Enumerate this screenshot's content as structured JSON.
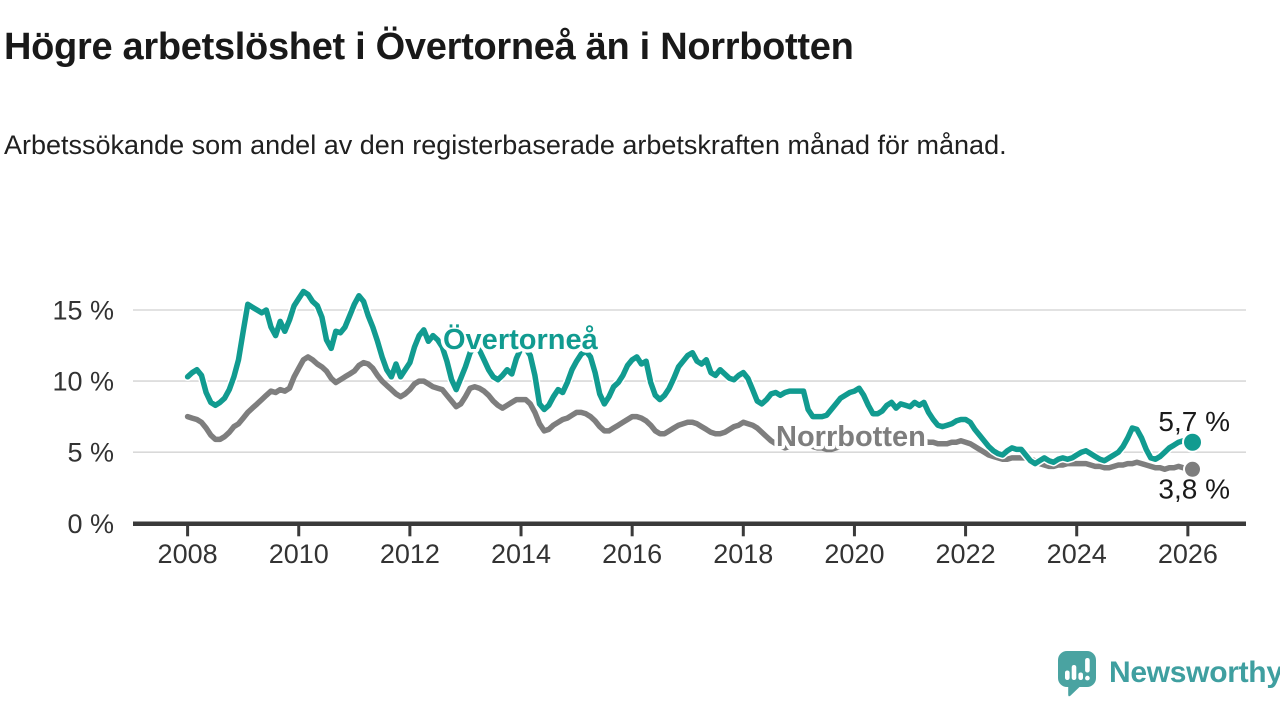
{
  "header": {
    "title": "Högre arbetslöshet i Övertorneå än i Norrbotten",
    "subtitle": "Arbetssökande som andel av den registerbaserade arbetskraften månad för månad."
  },
  "chart_data": {
    "type": "line",
    "title": "Högre arbetslöshet i Övertorneå än i Norrbotten",
    "subtitle": "Arbetssökande som andel av den registerbaserade arbetskraften månad för månad.",
    "unit": "%",
    "grid": "horizontal",
    "legend_position": "inline-labels",
    "x_start_year": 2008,
    "x_interval": "monthly",
    "x_end": "2026-02",
    "ylim": [
      0,
      17
    ],
    "x_ticks": [
      2008,
      2010,
      2012,
      2014,
      2016,
      2018,
      2020,
      2022,
      2024,
      2026
    ],
    "y_ticks": [
      {
        "value": 0,
        "label": "0 %"
      },
      {
        "value": 5,
        "label": "5 %"
      },
      {
        "value": 10,
        "label": "10 %"
      },
      {
        "value": 15,
        "label": "15 %"
      }
    ],
    "colors": {
      "overtornea": "#119b90",
      "norrbotten": "#7e7e7e",
      "gridline": "#d9d9d9",
      "axis": "#3a3a3a"
    },
    "series": [
      {
        "name": "Övertorneå",
        "color": "#119b90",
        "end_label": "5,7 %",
        "end_value": 5.7,
        "values": [
          10.3,
          10.6,
          10.8,
          10.4,
          9.2,
          8.5,
          8.3,
          8.5,
          8.8,
          9.4,
          10.3,
          11.5,
          13.5,
          15.4,
          15.2,
          15.0,
          14.8,
          15.0,
          13.8,
          13.2,
          14.2,
          13.5,
          14.3,
          15.3,
          15.8,
          16.3,
          16.1,
          15.6,
          15.3,
          14.5,
          12.9,
          12.3,
          13.5,
          13.4,
          13.8,
          14.6,
          15.4,
          16.0,
          15.6,
          14.6,
          13.8,
          12.8,
          11.7,
          10.8,
          10.3,
          11.2,
          10.3,
          10.8,
          11.3,
          12.4,
          13.2,
          13.6,
          12.8,
          13.2,
          12.9,
          12.4,
          11.4,
          10.1,
          9.4,
          10.2,
          11.0,
          12.0,
          12.4,
          12.2,
          11.5,
          10.8,
          10.3,
          10.1,
          10.4,
          10.8,
          10.5,
          11.6,
          12.3,
          12.3,
          11.8,
          10.4,
          8.4,
          8.0,
          8.3,
          8.9,
          9.4,
          9.2,
          9.9,
          10.8,
          11.4,
          11.9,
          12.1,
          11.7,
          10.6,
          9.1,
          8.4,
          8.9,
          9.6,
          9.9,
          10.4,
          11.1,
          11.5,
          11.7,
          11.2,
          11.4,
          9.9,
          9.0,
          8.7,
          9.0,
          9.5,
          10.2,
          11.0,
          11.4,
          11.8,
          12.0,
          11.4,
          11.2,
          11.5,
          10.6,
          10.4,
          10.8,
          10.5,
          10.2,
          10.1,
          10.4,
          10.6,
          10.2,
          9.4,
          8.6,
          8.4,
          8.7,
          9.1,
          9.2,
          9.0,
          9.2,
          9.3,
          9.3,
          9.3,
          9.3,
          8.0,
          7.5,
          7.5,
          7.5,
          7.6,
          8.0,
          8.4,
          8.8,
          9.0,
          9.2,
          9.3,
          9.5,
          9.0,
          8.3,
          7.7,
          7.7,
          7.9,
          8.3,
          8.5,
          8.1,
          8.4,
          8.3,
          8.2,
          8.5,
          8.3,
          8.5,
          7.8,
          7.3,
          6.9,
          6.8,
          6.9,
          7.0,
          7.2,
          7.3,
          7.3,
          7.1,
          6.6,
          6.2,
          5.8,
          5.4,
          5.1,
          4.9,
          4.8,
          5.1,
          5.3,
          5.2,
          5.2,
          4.8,
          4.4,
          4.2,
          4.4,
          4.6,
          4.4,
          4.3,
          4.5,
          4.6,
          4.5,
          4.6,
          4.8,
          5.0,
          5.1,
          4.9,
          4.7,
          4.5,
          4.4,
          4.6,
          4.8,
          5.0,
          5.4,
          6.0,
          6.7,
          6.6,
          6.0,
          5.2,
          4.6,
          4.5,
          4.7,
          5.0,
          5.3,
          5.5,
          5.7,
          5.8,
          5.8,
          5.7
        ]
      },
      {
        "name": "Norrbotten",
        "color": "#7e7e7e",
        "end_label": "3,8 %",
        "end_value": 3.8,
        "values": [
          7.5,
          7.4,
          7.3,
          7.1,
          6.7,
          6.2,
          5.9,
          5.9,
          6.1,
          6.4,
          6.8,
          7.0,
          7.4,
          7.8,
          8.1,
          8.4,
          8.7,
          9.0,
          9.3,
          9.2,
          9.4,
          9.3,
          9.5,
          10.3,
          10.9,
          11.5,
          11.7,
          11.5,
          11.2,
          11.0,
          10.7,
          10.2,
          9.9,
          10.1,
          10.3,
          10.5,
          10.7,
          11.1,
          11.3,
          11.2,
          10.9,
          10.4,
          10.0,
          9.7,
          9.4,
          9.1,
          8.9,
          9.1,
          9.4,
          9.8,
          10.0,
          10.0,
          9.8,
          9.6,
          9.5,
          9.4,
          9.0,
          8.6,
          8.2,
          8.4,
          8.9,
          9.5,
          9.6,
          9.5,
          9.3,
          9.0,
          8.6,
          8.3,
          8.1,
          8.3,
          8.5,
          8.7,
          8.7,
          8.7,
          8.4,
          7.8,
          7.0,
          6.5,
          6.6,
          6.9,
          7.1,
          7.3,
          7.4,
          7.6,
          7.8,
          7.8,
          7.7,
          7.5,
          7.2,
          6.8,
          6.5,
          6.5,
          6.7,
          6.9,
          7.1,
          7.3,
          7.5,
          7.5,
          7.4,
          7.2,
          6.9,
          6.5,
          6.3,
          6.3,
          6.5,
          6.7,
          6.9,
          7.0,
          7.1,
          7.1,
          7.0,
          6.8,
          6.6,
          6.4,
          6.3,
          6.3,
          6.4,
          6.6,
          6.8,
          6.9,
          7.1,
          7.0,
          6.9,
          6.7,
          6.4,
          6.1,
          5.8,
          5.6,
          5.4,
          5.3,
          5.4,
          5.5,
          5.6,
          5.6,
          5.5,
          5.4,
          5.3,
          5.3,
          5.2,
          5.2,
          5.3,
          5.4,
          5.5,
          5.6,
          5.7,
          5.8,
          6.0,
          6.3,
          6.4,
          6.4,
          6.3,
          6.2,
          6.1,
          6.0,
          5.9,
          5.9,
          5.9,
          5.9,
          5.8,
          5.8,
          5.7,
          5.7,
          5.6,
          5.6,
          5.6,
          5.7,
          5.7,
          5.8,
          5.7,
          5.6,
          5.4,
          5.2,
          5.0,
          4.8,
          4.7,
          4.6,
          4.5,
          4.5,
          4.6,
          4.6,
          4.6,
          4.6,
          4.5,
          4.4,
          4.2,
          4.1,
          4.0,
          4.0,
          4.1,
          4.1,
          4.2,
          4.2,
          4.2,
          4.2,
          4.2,
          4.1,
          4.0,
          4.0,
          3.9,
          3.9,
          4.0,
          4.1,
          4.1,
          4.2,
          4.2,
          4.3,
          4.2,
          4.1,
          4.0,
          3.9,
          3.9,
          3.8,
          3.9,
          3.9,
          4.0,
          3.9,
          3.9,
          3.8
        ]
      }
    ]
  },
  "footer": {
    "brand": "Newsworthy"
  }
}
